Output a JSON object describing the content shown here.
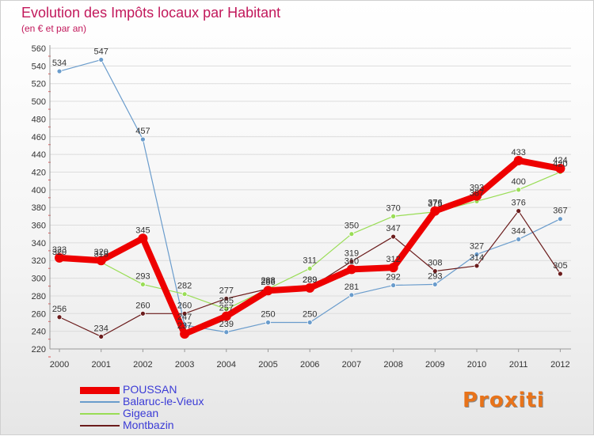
{
  "header": {
    "title": "Evolution des Impôts locaux par Habitant",
    "subtitle": "(en € et par an)"
  },
  "logo": {
    "text": "Proxiti"
  },
  "colors": {
    "POUSSAN": "#ee0000",
    "Balaruc-le-Vieux": "#6a9ccc",
    "Gigean": "#99dd55",
    "Montbazin": "#6b1c1c",
    "title": "#c2185b",
    "legend_text": "#3b3bd6"
  },
  "chart_data": {
    "type": "line",
    "title": "Evolution des Impôts locaux par Habitant",
    "subtitle": "(en € et par an)",
    "xlabel": "",
    "ylabel": "",
    "ylim": [
      220,
      560
    ],
    "yticks": [
      220,
      240,
      260,
      280,
      300,
      320,
      340,
      360,
      380,
      400,
      420,
      440,
      460,
      480,
      500,
      520,
      540,
      560
    ],
    "categories": [
      "2000",
      "2001",
      "2002",
      "2003",
      "2004",
      "2005",
      "2006",
      "2007",
      "2008",
      "2009",
      "2010",
      "2011",
      "2012"
    ],
    "grid": "horizontal",
    "legend_position": "bottom-left",
    "series": [
      {
        "name": "POUSSAN",
        "values": [
          323,
          320,
          345,
          237,
          257,
          286,
          289,
          310,
          312,
          376,
          393,
          433,
          424
        ]
      },
      {
        "name": "Balaruc-le-Vieux",
        "values": [
          534,
          547,
          457,
          247,
          239,
          250,
          250,
          281,
          292,
          293,
          327,
          344,
          367
        ]
      },
      {
        "name": "Gigean",
        "values": [
          320,
          318,
          293,
          282,
          265,
          288,
          311,
          350,
          370,
          375,
          387,
          400,
          420
        ]
      },
      {
        "name": "Montbazin",
        "values": [
          256,
          234,
          260,
          260,
          277,
          288,
          289,
          319,
          347,
          308,
          314,
          376,
          305
        ]
      }
    ]
  }
}
